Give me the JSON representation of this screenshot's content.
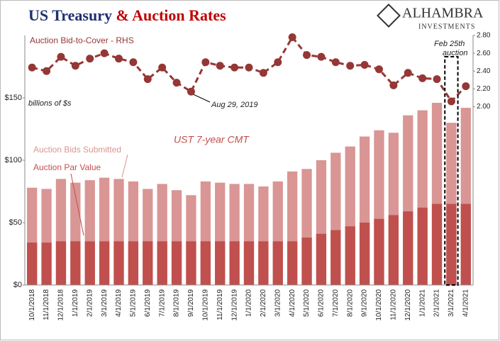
{
  "chart_data": {
    "type": "bar",
    "title_parts": [
      "US Treasury",
      "& Auction Rates"
    ],
    "logo": [
      "ALHAMBRA",
      "INVESTMENTS"
    ],
    "annotations": {
      "bid_to_cover": "Auction Bid-to-Cover - RHS",
      "units": "billions of $s",
      "aug": "Aug 29, 2019",
      "cmt": "UST 7-year CMT",
      "feb": "Feb 25th auction"
    },
    "categories": [
      "10/1/2018",
      "11/1/2018",
      "12/1/2018",
      "1/1/2019",
      "2/1/2019",
      "3/1/2019",
      "4/1/2019",
      "5/1/2019",
      "6/1/2019",
      "7/1/2019",
      "8/1/2019",
      "9/1/2019",
      "10/1/2019",
      "11/1/2019",
      "12/1/2019",
      "1/1/2020",
      "2/1/2020",
      "3/1/2020",
      "4/1/2020",
      "5/1/2020",
      "6/1/2020",
      "7/1/2020",
      "8/1/2020",
      "9/1/2020",
      "10/1/2020",
      "11/1/2020",
      "12/1/2020",
      "1/1/2021",
      "2/1/2021",
      "3/1/2021",
      "4/1/2021"
    ],
    "series": [
      {
        "name": "Auction Bids Submitted",
        "color": "#d99694",
        "values": [
          78,
          77,
          85,
          82,
          84,
          86,
          85,
          83,
          77,
          81,
          76,
          72,
          83,
          82,
          81,
          81,
          79,
          83,
          91,
          93,
          100,
          106,
          111,
          119,
          124,
          122,
          136,
          140,
          146,
          130,
          142
        ]
      },
      {
        "name": "Auction Par Value",
        "color": "#c0504d",
        "values": [
          34,
          34,
          35,
          35,
          35,
          35,
          35,
          35,
          35,
          35,
          35,
          35,
          35,
          35,
          35,
          35,
          35,
          35,
          35,
          38,
          41,
          44,
          47,
          50,
          53,
          56,
          59,
          62,
          65,
          65,
          65
        ]
      },
      {
        "name": "Auction Bid-to-Cover",
        "color": "#953735",
        "axis": "y2",
        "type": "line",
        "values": [
          2.44,
          2.4,
          2.56,
          2.46,
          2.54,
          2.6,
          2.54,
          2.5,
          2.31,
          2.44,
          2.27,
          2.17,
          2.5,
          2.46,
          2.44,
          2.44,
          2.38,
          2.5,
          2.78,
          2.58,
          2.56,
          2.5,
          2.46,
          2.47,
          2.42,
          2.24,
          2.38,
          2.32,
          2.31,
          2.06,
          2.23
        ]
      }
    ],
    "highlight_index": 29,
    "ylim": [
      0,
      200
    ],
    "yticks": [
      {
        "value": 0,
        "label": "$0"
      },
      {
        "value": 50,
        "label": "$50"
      },
      {
        "value": 100,
        "label": "$100"
      },
      {
        "value": 150,
        "label": "$150"
      }
    ],
    "y2lim": [
      0,
      2.8
    ],
    "y2ticks": [
      {
        "value": 2,
        "label": "2.00"
      },
      {
        "value": 2.2,
        "label": "2.20"
      },
      {
        "value": 2.4,
        "label": "2.40"
      },
      {
        "value": 2.6,
        "label": "2.60"
      },
      {
        "value": 2.8,
        "label": "2.80"
      }
    ]
  }
}
